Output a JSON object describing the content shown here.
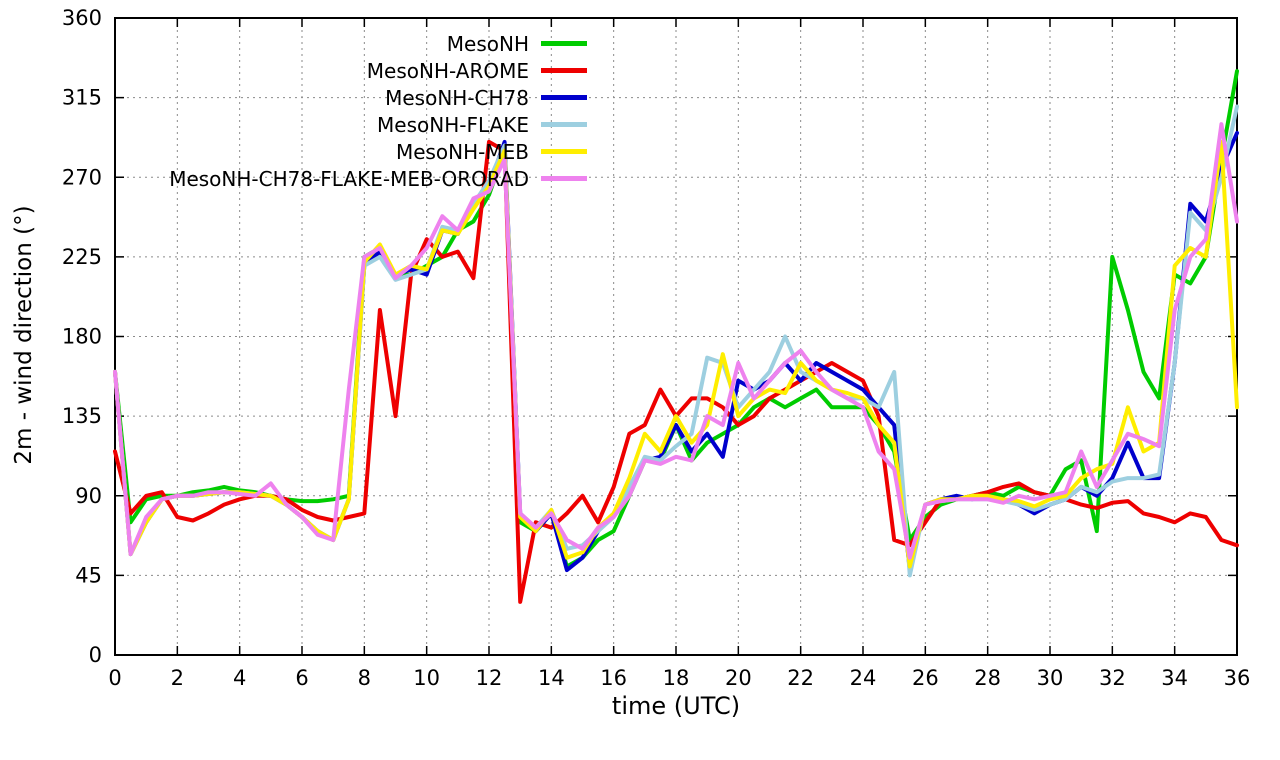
{
  "chart_data": {
    "type": "line",
    "title": "",
    "xlabel": "time (UTC)",
    "ylabel": "2m - wind direction (°)",
    "xlim": [
      0,
      36
    ],
    "ylim": [
      0,
      360
    ],
    "xticks": [
      0,
      2,
      4,
      6,
      8,
      10,
      12,
      14,
      16,
      18,
      20,
      22,
      24,
      26,
      28,
      30,
      32,
      34,
      36
    ],
    "yticks": [
      0,
      45,
      90,
      135,
      180,
      225,
      270,
      315,
      360
    ],
    "grid": true,
    "grid_style": "dotted",
    "legend_position": "top-inside-left",
    "x": {
      "start": 0,
      "end": 36,
      "step": 0.5
    },
    "series": [
      {
        "name": "MesoNH",
        "color": "#00cc00",
        "values": [
          160,
          75,
          88,
          90,
          90,
          92,
          93,
          95,
          93,
          92,
          90,
          88,
          87,
          87,
          88,
          90,
          225,
          230,
          215,
          215,
          220,
          225,
          240,
          245,
          260,
          285,
          75,
          70,
          80,
          50,
          55,
          65,
          70,
          90,
          110,
          110,
          130,
          110,
          120,
          125,
          130,
          140,
          145,
          140,
          145,
          150,
          140,
          140,
          140,
          130,
          115,
          65,
          78,
          85,
          88,
          90,
          92,
          90,
          95,
          92,
          90,
          105,
          110,
          70,
          225,
          195,
          160,
          145,
          215,
          210,
          225,
          280,
          330
        ]
      },
      {
        "name": "MesoNH-AROME",
        "color": "#ee0000",
        "values": [
          115,
          80,
          90,
          92,
          78,
          76,
          80,
          85,
          88,
          90,
          90,
          88,
          82,
          78,
          76,
          78,
          80,
          195,
          135,
          215,
          235,
          225,
          228,
          213,
          290,
          285,
          30,
          75,
          72,
          80,
          90,
          75,
          95,
          125,
          130,
          150,
          135,
          145,
          145,
          140,
          130,
          135,
          145,
          150,
          155,
          160,
          165,
          160,
          155,
          135,
          65,
          62,
          75,
          88,
          88,
          90,
          92,
          95,
          97,
          92,
          90,
          88,
          85,
          83,
          86,
          87,
          80,
          78,
          75,
          80,
          78,
          65,
          62
        ]
      },
      {
        "name": "MesoNH-CH78",
        "color": "#0000cc",
        "values": [
          160,
          57,
          75,
          88,
          90,
          90,
          91,
          92,
          92,
          91,
          90,
          85,
          78,
          70,
          65,
          88,
          220,
          228,
          215,
          218,
          215,
          240,
          238,
          255,
          265,
          290,
          80,
          70,
          80,
          48,
          55,
          70,
          80,
          95,
          110,
          112,
          130,
          115,
          125,
          112,
          155,
          150,
          155,
          165,
          155,
          165,
          160,
          155,
          150,
          140,
          130,
          48,
          85,
          88,
          90,
          88,
          90,
          88,
          85,
          80,
          85,
          88,
          95,
          90,
          100,
          120,
          100,
          100,
          165,
          255,
          245,
          275,
          295
        ]
      },
      {
        "name": "MesoNH-FLAKE",
        "color": "#9dcfe0",
        "values": [
          160,
          57,
          75,
          88,
          90,
          90,
          91,
          92,
          92,
          91,
          90,
          85,
          78,
          70,
          65,
          88,
          220,
          225,
          212,
          215,
          218,
          242,
          240,
          255,
          268,
          288,
          80,
          72,
          82,
          60,
          62,
          70,
          78,
          95,
          112,
          110,
          118,
          125,
          168,
          165,
          140,
          150,
          160,
          180,
          160,
          155,
          150,
          145,
          145,
          140,
          160,
          45,
          85,
          87,
          88,
          88,
          88,
          87,
          85,
          82,
          85,
          88,
          95,
          92,
          98,
          100,
          100,
          102,
          165,
          250,
          240,
          270,
          310
        ]
      },
      {
        "name": "MesoNH-MEB",
        "color": "#ffee00",
        "values": [
          160,
          57,
          75,
          88,
          90,
          90,
          91,
          92,
          92,
          91,
          90,
          85,
          78,
          70,
          65,
          88,
          222,
          232,
          215,
          220,
          218,
          240,
          238,
          252,
          265,
          285,
          78,
          70,
          82,
          55,
          58,
          72,
          80,
          100,
          125,
          115,
          135,
          120,
          130,
          170,
          135,
          145,
          150,
          148,
          165,
          155,
          150,
          148,
          145,
          130,
          120,
          50,
          85,
          88,
          88,
          90,
          90,
          88,
          87,
          84,
          88,
          90,
          100,
          105,
          108,
          140,
          115,
          120,
          220,
          230,
          225,
          290,
          140
        ]
      },
      {
        "name": "MesoNH-CH78-FLAKE-MEB-ORORAD",
        "color": "#ee82ee",
        "values": [
          160,
          57,
          78,
          88,
          90,
          90,
          92,
          92,
          91,
          90,
          97,
          85,
          78,
          68,
          65,
          150,
          225,
          230,
          213,
          220,
          230,
          248,
          240,
          258,
          262,
          280,
          80,
          72,
          80,
          65,
          60,
          72,
          78,
          90,
          110,
          108,
          112,
          110,
          135,
          130,
          165,
          145,
          155,
          165,
          172,
          160,
          150,
          145,
          140,
          115,
          105,
          55,
          85,
          87,
          88,
          88,
          88,
          86,
          90,
          88,
          90,
          92,
          115,
          95,
          110,
          125,
          122,
          118,
          195,
          225,
          235,
          300,
          245
        ]
      }
    ]
  }
}
